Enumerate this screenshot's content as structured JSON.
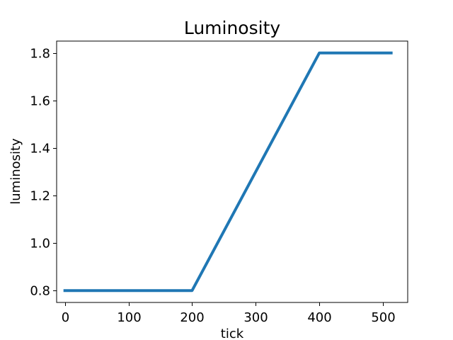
{
  "chart_data": {
    "type": "line",
    "title": "Luminosity",
    "xlabel": "tick",
    "ylabel": "luminosity",
    "xlim": [
      -13,
      539
    ],
    "ylim": [
      0.75,
      1.85
    ],
    "xticks": [
      0,
      100,
      200,
      300,
      400,
      500
    ],
    "xtick_labels": [
      "0",
      "100",
      "200",
      "300",
      "400",
      "500"
    ],
    "yticks": [
      0.8,
      1.0,
      1.2,
      1.4,
      1.6,
      1.8
    ],
    "ytick_labels": [
      "0.8",
      "1.0",
      "1.2",
      "1.4",
      "1.6",
      "1.8"
    ],
    "grid": false,
    "series": [
      {
        "color": "#1f77b4",
        "x": [
          0,
          200,
          400,
          513
        ],
        "y": [
          0.8,
          0.8,
          1.8,
          1.8
        ]
      }
    ]
  }
}
